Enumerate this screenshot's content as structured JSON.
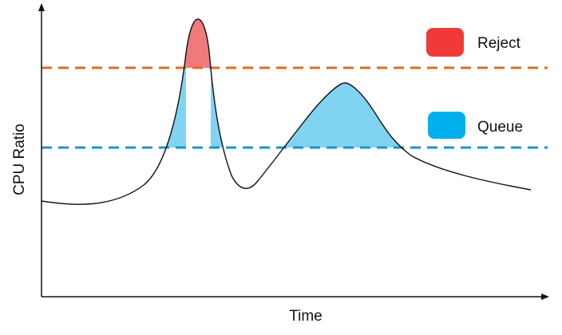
{
  "axes": {
    "x_label": "Time",
    "y_label": "CPU Ratio"
  },
  "legend": [
    {
      "label": "Reject",
      "color": "#f03a3a"
    },
    {
      "label": "Queue",
      "color": "#00b0ec"
    }
  ],
  "colors": {
    "reject_threshold_line": "#e06c1f",
    "queue_threshold_line": "#1f93c7",
    "reject_fill": "#f07a7a",
    "queue_fill": "#80d4f2",
    "curve": "#111111",
    "axis": "#111111"
  }
}
